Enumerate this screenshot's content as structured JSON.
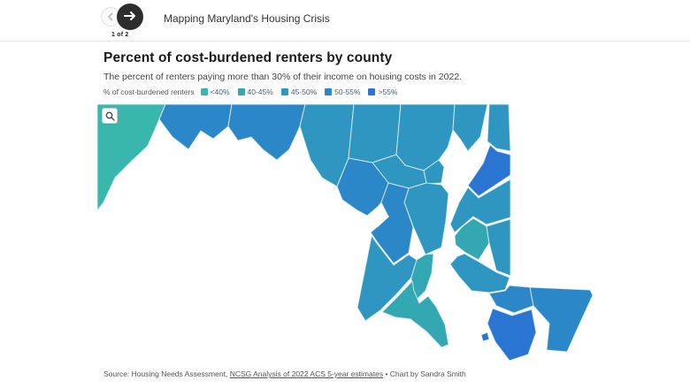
{
  "header": {
    "story_title": "Mapping Maryland's Housing Crisis",
    "pager": "1 of 2"
  },
  "icons": {
    "prev": "arrow-left-icon",
    "next": "arrow-right-icon",
    "map_zoom": "magnifier-icon"
  },
  "chart": {
    "title": "Percent of cost-burdened renters by county",
    "subtitle": "The percent of renters paying more than 30% of their income on housing costs in 2022.",
    "legend_label": "% of cost-burdened renters"
  },
  "footer": {
    "source_prefix": "Source: Housing Needs Assessment, ",
    "source_link": "NCSG Analysis of 2022 ACS 5-year estimates",
    "separator": " • ",
    "credit": "Chart by Sandra Smith"
  },
  "chart_data": {
    "type": "choropleth",
    "region": "Maryland counties",
    "title": "Percent of cost-burdened renters by county",
    "legend_label": "% of cost-burdened renters",
    "legend_position": "top",
    "bins": [
      {
        "label": "<40%",
        "color": "#3ab7ac"
      },
      {
        "label": "40-45%",
        "color": "#33a7b2"
      },
      {
        "label": "45-50%",
        "color": "#2e96c0"
      },
      {
        "label": "50-55%",
        "color": "#2c87c8"
      },
      {
        "label": ">55%",
        "color": "#2a75d2"
      }
    ],
    "counties": [
      {
        "name": "Garrett",
        "bin": "<40%"
      },
      {
        "name": "Allegany",
        "bin": "50-55%"
      },
      {
        "name": "Washington",
        "bin": "50-55%"
      },
      {
        "name": "Frederick",
        "bin": "45-50%"
      },
      {
        "name": "Carroll",
        "bin": "45-50%"
      },
      {
        "name": "Baltimore County",
        "bin": "45-50%"
      },
      {
        "name": "Baltimore City",
        "bin": "45-50%"
      },
      {
        "name": "Harford",
        "bin": "45-50%"
      },
      {
        "name": "Cecil",
        "bin": "45-50%"
      },
      {
        "name": "Kent",
        "bin": ">55%"
      },
      {
        "name": "Queen Anne's",
        "bin": "45-50%"
      },
      {
        "name": "Caroline",
        "bin": "45-50%"
      },
      {
        "name": "Talbot",
        "bin": "40-45%"
      },
      {
        "name": "Dorchester",
        "bin": "45-50%"
      },
      {
        "name": "Wicomico",
        "bin": "50-55%"
      },
      {
        "name": "Somerset",
        "bin": ">55%"
      },
      {
        "name": "Worcester",
        "bin": "50-55%"
      },
      {
        "name": "Howard",
        "bin": "45-50%"
      },
      {
        "name": "Montgomery",
        "bin": "50-55%"
      },
      {
        "name": "Anne Arundel",
        "bin": "45-50%"
      },
      {
        "name": "Prince George's",
        "bin": "50-55%"
      },
      {
        "name": "Charles",
        "bin": "45-50%"
      },
      {
        "name": "Calvert",
        "bin": "40-45%"
      },
      {
        "name": "St. Mary's",
        "bin": "40-45%"
      }
    ]
  }
}
